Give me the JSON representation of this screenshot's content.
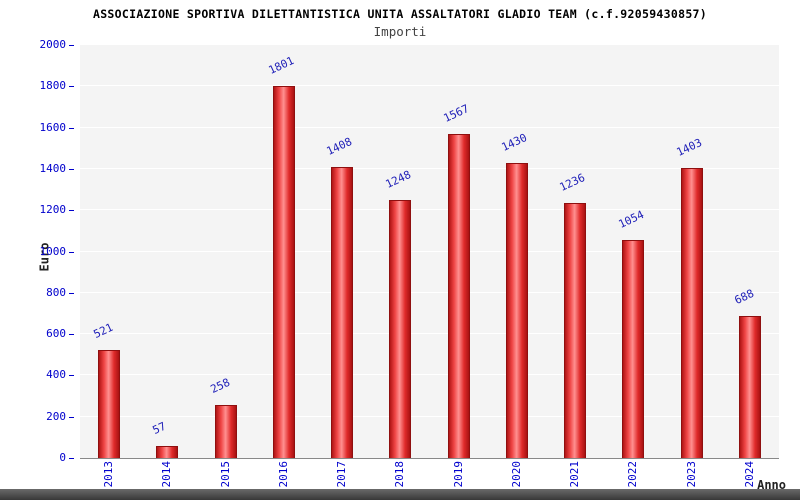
{
  "header": {
    "title": "ASSOCIAZIONE SPORTIVA DILETTANTISTICA UNITA ASSALTATORI GLADIO TEAM (c.f.92059430857)",
    "subtitle": "Importi"
  },
  "chart_data": {
    "type": "bar",
    "title": "ASSOCIAZIONE SPORTIVA DILETTANTISTICA UNITA ASSALTATORI GLADIO TEAM (c.f.92059430857)",
    "subtitle": "Importi",
    "categories": [
      "2013",
      "2014",
      "2015",
      "2016",
      "2017",
      "2018",
      "2019",
      "2020",
      "2021",
      "2022",
      "2023",
      "2024"
    ],
    "values": [
      521,
      57,
      258,
      1801,
      1408,
      1248,
      1567,
      1430,
      1236,
      1054,
      1403,
      688
    ],
    "xlabel": "Anno",
    "ylabel": "Euro",
    "ylim": [
      0,
      2000
    ],
    "ytick_step": 200,
    "grid": "horizontal",
    "legend": "none",
    "colors": {
      "bar_fill": "#e02b2b",
      "bar_edge": "#8f0f0f",
      "value_label": "#2020b8",
      "axis_tick_text": "#0000cc",
      "plot_background": "#f4f4f4"
    }
  }
}
